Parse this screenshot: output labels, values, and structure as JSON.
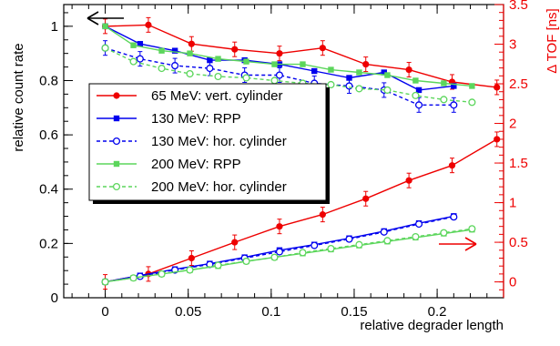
{
  "chart_data": {
    "type": "line",
    "xlabel": "relative degrader length",
    "ylabel_left": "relative count rate",
    "ylabel_right": "Δ TOF [ns]",
    "xlim": [
      -0.025,
      0.24
    ],
    "ylim_left": [
      0,
      1.08
    ],
    "ylim_right": [
      -0.2,
      3.5
    ],
    "x_ticks": [
      0,
      0.05,
      0.1,
      0.15,
      0.2
    ],
    "x_tick_labels": [
      "0",
      "0.05",
      "0.1",
      "0.15",
      "0.2"
    ],
    "y_left_ticks": [
      0,
      0.2,
      0.4,
      0.6,
      0.8,
      1
    ],
    "y_left_tick_labels": [
      "0",
      "0.2",
      "0.4",
      "0.6",
      "0.8",
      "1"
    ],
    "y_right_ticks": [
      0,
      0.5,
      1,
      1.5,
      2,
      2.5,
      3,
      3.5
    ],
    "y_right_tick_labels": [
      "0",
      "0.5",
      "1",
      "1.5",
      "2",
      "2.5",
      "3",
      "3.5"
    ],
    "legend_position": "center-left",
    "grid": false,
    "colors": {
      "red": "#ee0000",
      "blue": "#0000ee",
      "green": "#5cd65c"
    },
    "series": [
      {
        "name": "65 MeV: vert. cylinder",
        "group": "count_rate",
        "color": "#ee0000",
        "marker": "filled-circle",
        "dashed": false,
        "error_bars": true,
        "x": [
          0,
          0.026,
          0.052,
          0.078,
          0.105,
          0.131,
          0.157,
          0.183,
          0.209,
          0.236
        ],
        "y": [
          1.0,
          1.005,
          0.935,
          0.915,
          0.9,
          0.92,
          0.86,
          0.84,
          0.795,
          0.775
        ]
      },
      {
        "name": "130 MeV: RPP",
        "group": "count_rate",
        "color": "#0000ee",
        "marker": "filled-square",
        "dashed": false,
        "error_bars": false,
        "x": [
          0,
          0.021,
          0.042,
          0.063,
          0.084,
          0.105,
          0.126,
          0.147,
          0.168,
          0.189,
          0.21
        ],
        "y": [
          1.0,
          0.935,
          0.91,
          0.875,
          0.875,
          0.86,
          0.835,
          0.81,
          0.83,
          0.765,
          0.78
        ]
      },
      {
        "name": "130 MeV: hor. cylinder",
        "group": "count_rate",
        "color": "#0000ee",
        "marker": "open-circle",
        "dashed": true,
        "error_bars": true,
        "x": [
          0,
          0.021,
          0.042,
          0.063,
          0.084,
          0.105,
          0.126,
          0.147,
          0.168,
          0.189,
          0.21
        ],
        "y": [
          0.92,
          0.88,
          0.855,
          0.845,
          0.82,
          0.82,
          0.79,
          0.78,
          0.765,
          0.71,
          0.71
        ]
      },
      {
        "name": "200 MeV: RPP",
        "group": "count_rate",
        "color": "#5cd65c",
        "marker": "filled-square",
        "dashed": false,
        "error_bars": false,
        "x": [
          0,
          0.017,
          0.034,
          0.051,
          0.068,
          0.085,
          0.102,
          0.119,
          0.136,
          0.153,
          0.17,
          0.187,
          0.204,
          0.221
        ],
        "y": [
          1.0,
          0.93,
          0.91,
          0.9,
          0.88,
          0.87,
          0.86,
          0.86,
          0.84,
          0.83,
          0.82,
          0.8,
          0.79,
          0.78
        ]
      },
      {
        "name": "200 MeV: hor. cylinder",
        "group": "count_rate",
        "color": "#5cd65c",
        "marker": "open-circle",
        "dashed": true,
        "error_bars": false,
        "x": [
          0,
          0.017,
          0.034,
          0.051,
          0.068,
          0.085,
          0.102,
          0.119,
          0.136,
          0.153,
          0.17,
          0.187,
          0.204,
          0.221
        ],
        "y": [
          0.92,
          0.87,
          0.845,
          0.825,
          0.815,
          0.81,
          0.8,
          0.79,
          0.785,
          0.77,
          0.765,
          0.745,
          0.73,
          0.72
        ]
      },
      {
        "name": "65 MeV: vert. cylinder",
        "group": "tof",
        "color": "#ee0000",
        "marker": "filled-circle",
        "dashed": false,
        "error_bars": true,
        "x": [
          0,
          0.026,
          0.052,
          0.078,
          0.105,
          0.131,
          0.157,
          0.183,
          0.209,
          0.236
        ],
        "y": [
          0.0,
          0.1,
          0.3,
          0.5,
          0.7,
          0.85,
          1.05,
          1.28,
          1.47,
          1.8
        ]
      },
      {
        "name": "130 MeV: RPP",
        "group": "tof",
        "color": "#0000ee",
        "marker": "filled-square",
        "dashed": false,
        "error_bars": false,
        "x": [
          0,
          0.021,
          0.042,
          0.063,
          0.084,
          0.105,
          0.126,
          0.147,
          0.168,
          0.189,
          0.21
        ],
        "y": [
          0.0,
          0.08,
          0.16,
          0.23,
          0.31,
          0.4,
          0.47,
          0.55,
          0.64,
          0.74,
          0.83
        ]
      },
      {
        "name": "130 MeV: hor. cylinder",
        "group": "tof",
        "color": "#0000ee",
        "marker": "open-circle",
        "dashed": true,
        "error_bars": false,
        "x": [
          0,
          0.021,
          0.042,
          0.063,
          0.084,
          0.105,
          0.126,
          0.147,
          0.168,
          0.189,
          0.21
        ],
        "y": [
          0.0,
          0.07,
          0.15,
          0.22,
          0.3,
          0.38,
          0.46,
          0.54,
          0.63,
          0.73,
          0.82
        ]
      },
      {
        "name": "200 MeV: RPP",
        "group": "tof",
        "color": "#5cd65c",
        "marker": "filled-square",
        "dashed": false,
        "error_bars": false,
        "x": [
          0,
          0.017,
          0.034,
          0.051,
          0.068,
          0.085,
          0.102,
          0.119,
          0.136,
          0.153,
          0.17,
          0.187,
          0.204,
          0.221
        ],
        "y": [
          0.0,
          0.05,
          0.1,
          0.15,
          0.2,
          0.26,
          0.31,
          0.36,
          0.41,
          0.46,
          0.51,
          0.56,
          0.61,
          0.66
        ]
      },
      {
        "name": "200 MeV: hor. cylinder",
        "group": "tof",
        "color": "#5cd65c",
        "marker": "open-circle",
        "dashed": true,
        "error_bars": false,
        "x": [
          0,
          0.017,
          0.034,
          0.051,
          0.068,
          0.085,
          0.102,
          0.119,
          0.136,
          0.153,
          0.17,
          0.187,
          0.204,
          0.221
        ],
        "y": [
          0.0,
          0.05,
          0.1,
          0.15,
          0.21,
          0.26,
          0.31,
          0.37,
          0.42,
          0.47,
          0.52,
          0.57,
          0.62,
          0.67
        ]
      }
    ],
    "legend": [
      {
        "label": "65 MeV: vert. cylinder",
        "color": "#ee0000",
        "marker": "filled-circle",
        "dashed": false
      },
      {
        "label": "130 MeV: RPP",
        "color": "#0000ee",
        "marker": "filled-square",
        "dashed": false
      },
      {
        "label": "130 MeV: hor. cylinder",
        "color": "#0000ee",
        "marker": "open-circle",
        "dashed": true
      },
      {
        "label": "200 MeV: RPP",
        "color": "#5cd65c",
        "marker": "filled-square",
        "dashed": false
      },
      {
        "label": "200 MeV: hor. cylinder",
        "color": "#5cd65c",
        "marker": "open-circle",
        "dashed": true
      }
    ],
    "annotations": [
      {
        "type": "arrow",
        "direction": "left",
        "color": "#000000",
        "meaning": "count rate uses left axis"
      },
      {
        "type": "arrow",
        "direction": "right",
        "color": "#ee0000",
        "meaning": "Δ TOF uses right axis"
      }
    ]
  }
}
